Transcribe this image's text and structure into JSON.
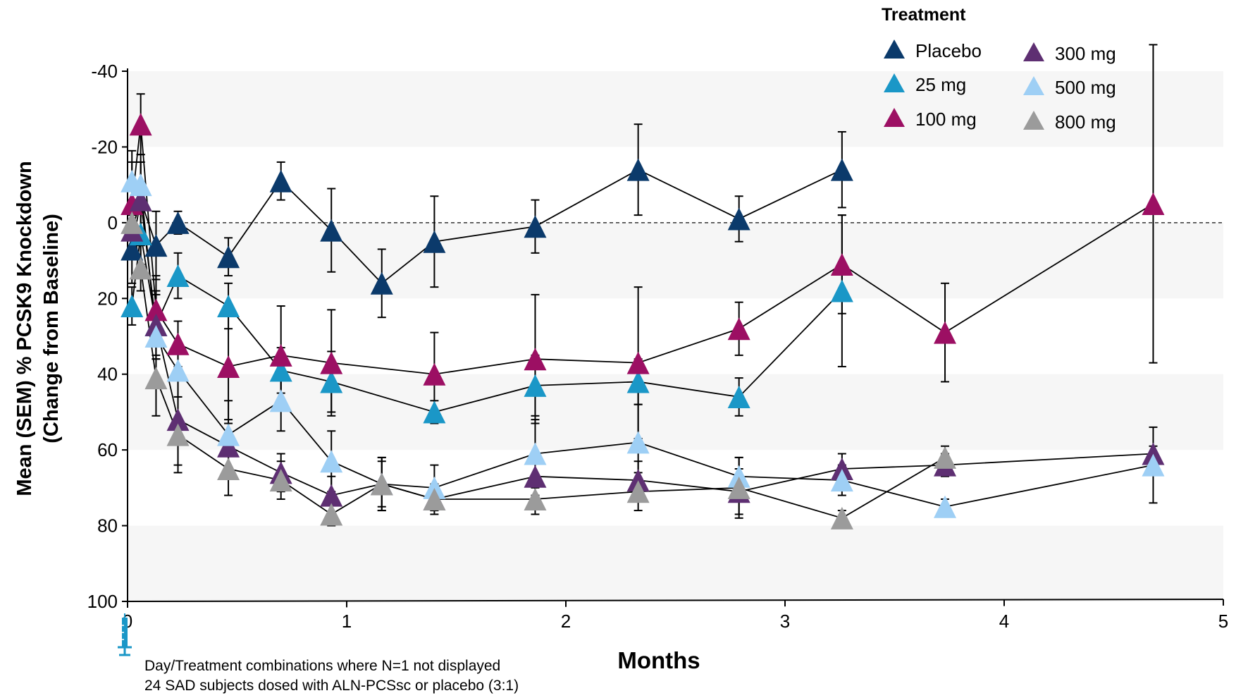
{
  "chart_data": {
    "type": "line",
    "xlabel": "Months",
    "ylabel_line1": "Mean (SEM) % PCSK9 Knockdown",
    "ylabel_line2": "(Change from Baseline)",
    "xlim": [
      0,
      5
    ],
    "ylim": [
      -40,
      100
    ],
    "y_inverted": true,
    "x_ticks": [
      0,
      1,
      2,
      3,
      4,
      5
    ],
    "y_ticks": [
      -40,
      -20,
      0,
      20,
      40,
      60,
      80,
      100
    ],
    "band_color": "#f6f6f6",
    "reference_line_y": 0,
    "legend": {
      "title": "Treatment",
      "placement": "top-right"
    },
    "notes": [
      "Day/Treatment combinations where N=1 not displayed",
      "24 SAD subjects dosed with ALN-PCSsc or placebo (3:1)"
    ],
    "series": [
      {
        "name": "Placebo",
        "color": "#0b3a6b",
        "points": [
          {
            "x": 0.02,
            "y": 7,
            "err": 9
          },
          {
            "x": 0.06,
            "y": -6,
            "err": 10
          },
          {
            "x": 0.13,
            "y": 6,
            "err": 9
          },
          {
            "x": 0.23,
            "y": 0,
            "err": 3
          },
          {
            "x": 0.46,
            "y": 9,
            "err": 5
          },
          {
            "x": 0.7,
            "y": -11,
            "err": 5
          },
          {
            "x": 0.93,
            "y": 2,
            "err": 11
          },
          {
            "x": 1.16,
            "y": 16,
            "err": 9
          },
          {
            "x": 1.4,
            "y": 5,
            "err": 12
          },
          {
            "x": 1.86,
            "y": 1,
            "err": 7
          },
          {
            "x": 2.33,
            "y": -14,
            "err": 12
          },
          {
            "x": 2.79,
            "y": -1,
            "err": 6
          },
          {
            "x": 3.26,
            "y": -14,
            "err": 10
          }
        ]
      },
      {
        "name": "25 mg",
        "color": "#1a97c7",
        "points": [
          {
            "x": 0.02,
            "y": 22,
            "err": 5
          },
          {
            "x": 0.06,
            "y": 3,
            "err": 8
          },
          {
            "x": 0.13,
            "y": 27,
            "err": 8
          },
          {
            "x": 0.23,
            "y": 14,
            "err": 6
          },
          {
            "x": 0.46,
            "y": 22,
            "err": 6
          },
          {
            "x": 0.7,
            "y": 39,
            "err": 6
          },
          {
            "x": 0.93,
            "y": 42,
            "err": 8
          },
          {
            "x": 1.4,
            "y": 50,
            "err": 3
          },
          {
            "x": 1.86,
            "y": 43,
            "err": 8
          },
          {
            "x": 2.33,
            "y": 42,
            "err": 6
          },
          {
            "x": 2.79,
            "y": 46,
            "err": 5
          },
          {
            "x": 3.26,
            "y": 18,
            "err": 20
          }
        ]
      },
      {
        "name": "100 mg",
        "color": "#9c0f63",
        "points": [
          {
            "x": 0.02,
            "y": -5,
            "err": 14
          },
          {
            "x": 0.06,
            "y": -26,
            "err": 8
          },
          {
            "x": 0.13,
            "y": 23,
            "err": 9
          },
          {
            "x": 0.23,
            "y": 32,
            "err": 6
          },
          {
            "x": 0.46,
            "y": 38,
            "err": 14
          },
          {
            "x": 0.7,
            "y": 35,
            "err": 13
          },
          {
            "x": 0.93,
            "y": 37,
            "err": 14
          },
          {
            "x": 1.4,
            "y": 40,
            "err": 11
          },
          {
            "x": 1.86,
            "y": 36,
            "err": 17
          },
          {
            "x": 2.33,
            "y": 37,
            "err": 20
          },
          {
            "x": 2.79,
            "y": 28,
            "err": 7
          },
          {
            "x": 3.26,
            "y": 11,
            "err": 13
          },
          {
            "x": 3.73,
            "y": 29,
            "err": 13
          },
          {
            "x": 4.68,
            "y": -5,
            "err": 42
          }
        ]
      },
      {
        "name": "300 mg",
        "color": "#5e2f72",
        "points": [
          {
            "x": 0.02,
            "y": 2,
            "err": 6
          },
          {
            "x": 0.06,
            "y": -6,
            "err": 12
          },
          {
            "x": 0.13,
            "y": 27,
            "err": 9
          },
          {
            "x": 0.23,
            "y": 52,
            "err": 12
          },
          {
            "x": 0.46,
            "y": 59,
            "err": 6
          },
          {
            "x": 0.7,
            "y": 66,
            "err": 5
          },
          {
            "x": 0.93,
            "y": 72,
            "err": 5
          },
          {
            "x": 1.16,
            "y": 69,
            "err": 6
          },
          {
            "x": 1.4,
            "y": 73,
            "err": 3
          },
          {
            "x": 1.86,
            "y": 67,
            "err": 5
          },
          {
            "x": 2.33,
            "y": 68,
            "err": 5
          },
          {
            "x": 2.79,
            "y": 71,
            "err": 6
          },
          {
            "x": 3.26,
            "y": 65,
            "err": 4
          },
          {
            "x": 3.73,
            "y": 64,
            "err": 3
          },
          {
            "x": 4.68,
            "y": 61,
            "err": 2
          }
        ]
      },
      {
        "name": "500 mg",
        "color": "#9ecff5",
        "points": [
          {
            "x": 0.02,
            "y": -11,
            "err": 5
          },
          {
            "x": 0.06,
            "y": -10,
            "err": 6
          },
          {
            "x": 0.13,
            "y": 30,
            "err": 6
          },
          {
            "x": 0.23,
            "y": 39,
            "err": 7
          },
          {
            "x": 0.46,
            "y": 56,
            "err": 9
          },
          {
            "x": 0.7,
            "y": 47,
            "err": 8
          },
          {
            "x": 0.93,
            "y": 63,
            "err": 8
          },
          {
            "x": 1.16,
            "y": 69,
            "err": 7
          },
          {
            "x": 1.4,
            "y": 70,
            "err": 6
          },
          {
            "x": 1.86,
            "y": 61,
            "err": 9
          },
          {
            "x": 2.33,
            "y": 58,
            "err": 10
          },
          {
            "x": 2.79,
            "y": 67,
            "err": 5
          },
          {
            "x": 3.26,
            "y": 68,
            "err": 4
          },
          {
            "x": 3.73,
            "y": 75,
            "err": 2
          },
          {
            "x": 4.68,
            "y": 64,
            "err": 10
          }
        ]
      },
      {
        "name": "800 mg",
        "color": "#9b9b9b",
        "points": [
          {
            "x": 0.02,
            "y": 0,
            "err": 4
          },
          {
            "x": 0.06,
            "y": 12,
            "err": 6
          },
          {
            "x": 0.13,
            "y": 41,
            "err": 10
          },
          {
            "x": 0.23,
            "y": 56,
            "err": 10
          },
          {
            "x": 0.46,
            "y": 65,
            "err": 7
          },
          {
            "x": 0.7,
            "y": 68,
            "err": 5
          },
          {
            "x": 0.93,
            "y": 77,
            "err": 3
          },
          {
            "x": 1.16,
            "y": 69,
            "err": 7
          },
          {
            "x": 1.4,
            "y": 73,
            "err": 4
          },
          {
            "x": 1.86,
            "y": 73,
            "err": 4
          },
          {
            "x": 2.33,
            "y": 71,
            "err": 5
          },
          {
            "x": 2.79,
            "y": 70,
            "err": 8
          },
          {
            "x": 3.26,
            "y": 78,
            "err": 2
          },
          {
            "x": 3.73,
            "y": 62,
            "err": 3
          }
        ]
      }
    ]
  }
}
